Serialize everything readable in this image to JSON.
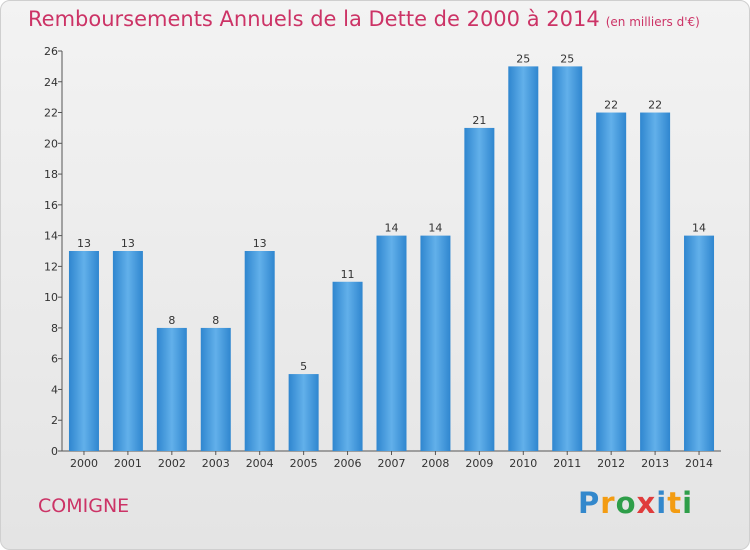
{
  "chart_data": {
    "type": "bar",
    "title": "Remboursements Annuels de la Dette de 2000 à 2014",
    "subtitle": "(en milliers d'€)",
    "categories": [
      "2000",
      "2001",
      "2002",
      "2003",
      "2004",
      "2005",
      "2006",
      "2007",
      "2008",
      "2009",
      "2010",
      "2011",
      "2012",
      "2013",
      "2014"
    ],
    "values": [
      13,
      13,
      8,
      8,
      13,
      5,
      11,
      14,
      14,
      21,
      25,
      25,
      22,
      22,
      14
    ],
    "ylim": [
      0,
      26
    ],
    "yticks": [
      0,
      2,
      4,
      6,
      8,
      10,
      12,
      14,
      16,
      18,
      20,
      22,
      24,
      26
    ],
    "grid": false,
    "bar_color": "#3f97d9"
  },
  "footer": {
    "commune": "COMIGNE",
    "logo": [
      "P",
      "r",
      "o",
      "x",
      "i",
      "t",
      "i"
    ],
    "logo_colors": [
      "#3388cc",
      "#f39c12",
      "#2e9e49",
      "#e03c3c",
      "#3388cc",
      "#f39c12",
      "#2e9e49"
    ]
  }
}
